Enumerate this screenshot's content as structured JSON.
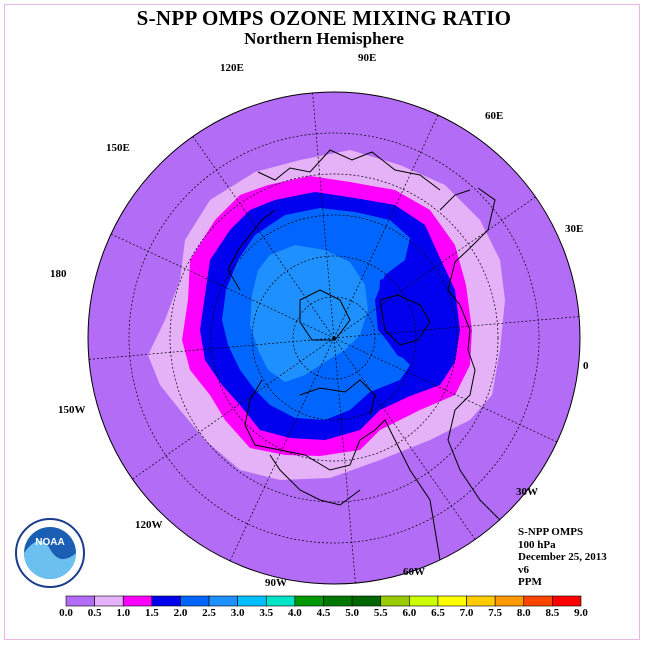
{
  "title": "S-NPP OMPS OZONE MIXING RATIO",
  "subtitle": "Northern Hemisphere",
  "projection": "north-polar-stereographic",
  "longitude_labels": [
    "90E",
    "60E",
    "30E",
    "0",
    "30W",
    "60W",
    "90W",
    "120W",
    "150W",
    "180",
    "150E",
    "120E"
  ],
  "info": {
    "instrument": "S-NPP OMPS",
    "level": "100 hPa",
    "date": "December 25, 2013",
    "version": "v6",
    "units": "PPM"
  },
  "colorbar": {
    "ticks": [
      "0.0",
      "0.5",
      "1.0",
      "1.5",
      "2.0",
      "2.5",
      "3.0",
      "3.5",
      "4.0",
      "4.5",
      "5.0",
      "5.5",
      "6.0",
      "6.5",
      "7.0",
      "7.5",
      "8.0",
      "8.5",
      "9.0"
    ],
    "colors": [
      "#b36cf5",
      "#e5b2f8",
      "#ff00ff",
      "#0000ee",
      "#0066ff",
      "#1e90ff",
      "#00bfff",
      "#00e5c8",
      "#009900",
      "#007700",
      "#006600",
      "#99cc00",
      "#ccff00",
      "#ffff00",
      "#ffcc00",
      "#ff9900",
      "#ff4500",
      "#ff0000",
      "#8b5a2b"
    ]
  },
  "contours": {
    "background_level": "0.0-0.5",
    "levels_shown": [
      "0.5-1.0",
      "1.0-1.5",
      "1.5-2.0",
      "2.0-2.5",
      "2.5-3.0"
    ]
  },
  "logo_text": "NOAA"
}
